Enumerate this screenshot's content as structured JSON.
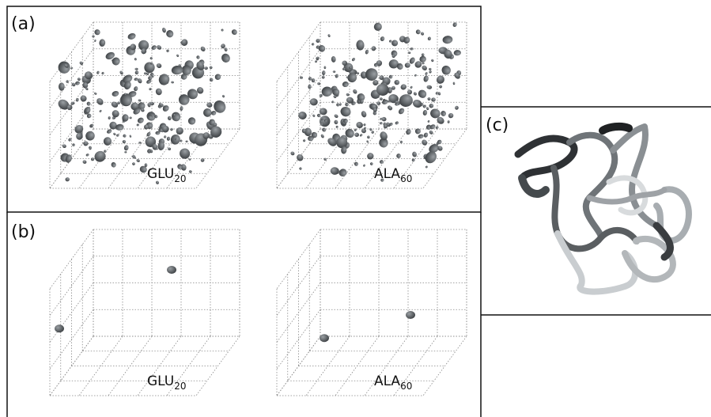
{
  "panels": [
    {
      "label": "(a)",
      "plots": [
        {
          "main": "GLU",
          "sub": "20"
        },
        {
          "main": "ALA",
          "sub": "60"
        }
      ]
    },
    {
      "label": "(b)",
      "plots": [
        {
          "main": "GLU",
          "sub": "20"
        },
        {
          "main": "ALA",
          "sub": "60"
        }
      ]
    },
    {
      "label": "(c)"
    }
  ]
}
